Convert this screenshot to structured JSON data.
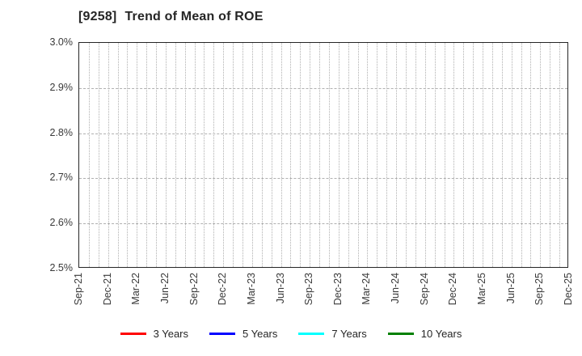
{
  "title": {
    "code": "[9258]",
    "text": "Trend of Mean of ROE"
  },
  "chart_data": {
    "type": "line",
    "title": "[9258] Trend of Mean of ROE",
    "xlabel": "",
    "ylabel": "",
    "ylim": [
      2.5,
      3.0
    ],
    "y_tick_labels": [
      "3.0%",
      "2.9%",
      "2.8%",
      "2.7%",
      "2.6%",
      "2.5%"
    ],
    "y_tick_values": [
      3.0,
      2.9,
      2.8,
      2.7,
      2.6,
      2.5
    ],
    "x_tick_labels": [
      "Sep-21",
      "Dec-21",
      "Mar-22",
      "Jun-22",
      "Sep-22",
      "Dec-22",
      "Mar-23",
      "Jun-23",
      "Sep-23",
      "Dec-23",
      "Mar-24",
      "Jun-24",
      "Sep-24",
      "Dec-24",
      "Mar-25",
      "Jun-25",
      "Sep-25",
      "Dec-25"
    ],
    "months_per_tick": 3,
    "total_month_intervals": 51,
    "grid": true,
    "legend_position": "bottom",
    "series": [
      {
        "name": "3 Years",
        "color": "#ff0000",
        "values": []
      },
      {
        "name": "5 Years",
        "color": "#0000ff",
        "values": []
      },
      {
        "name": "7 Years",
        "color": "#00ffff",
        "values": []
      },
      {
        "name": "10 Years",
        "color": "#008000",
        "values": []
      }
    ],
    "note": "No data points are plotted; the chart area shows only the empty grid."
  },
  "colors": {
    "axis": "#262626",
    "grid": "#b0b0b0",
    "tick_text": "#3a3a3a",
    "title_text": "#262626",
    "background": "#ffffff"
  }
}
